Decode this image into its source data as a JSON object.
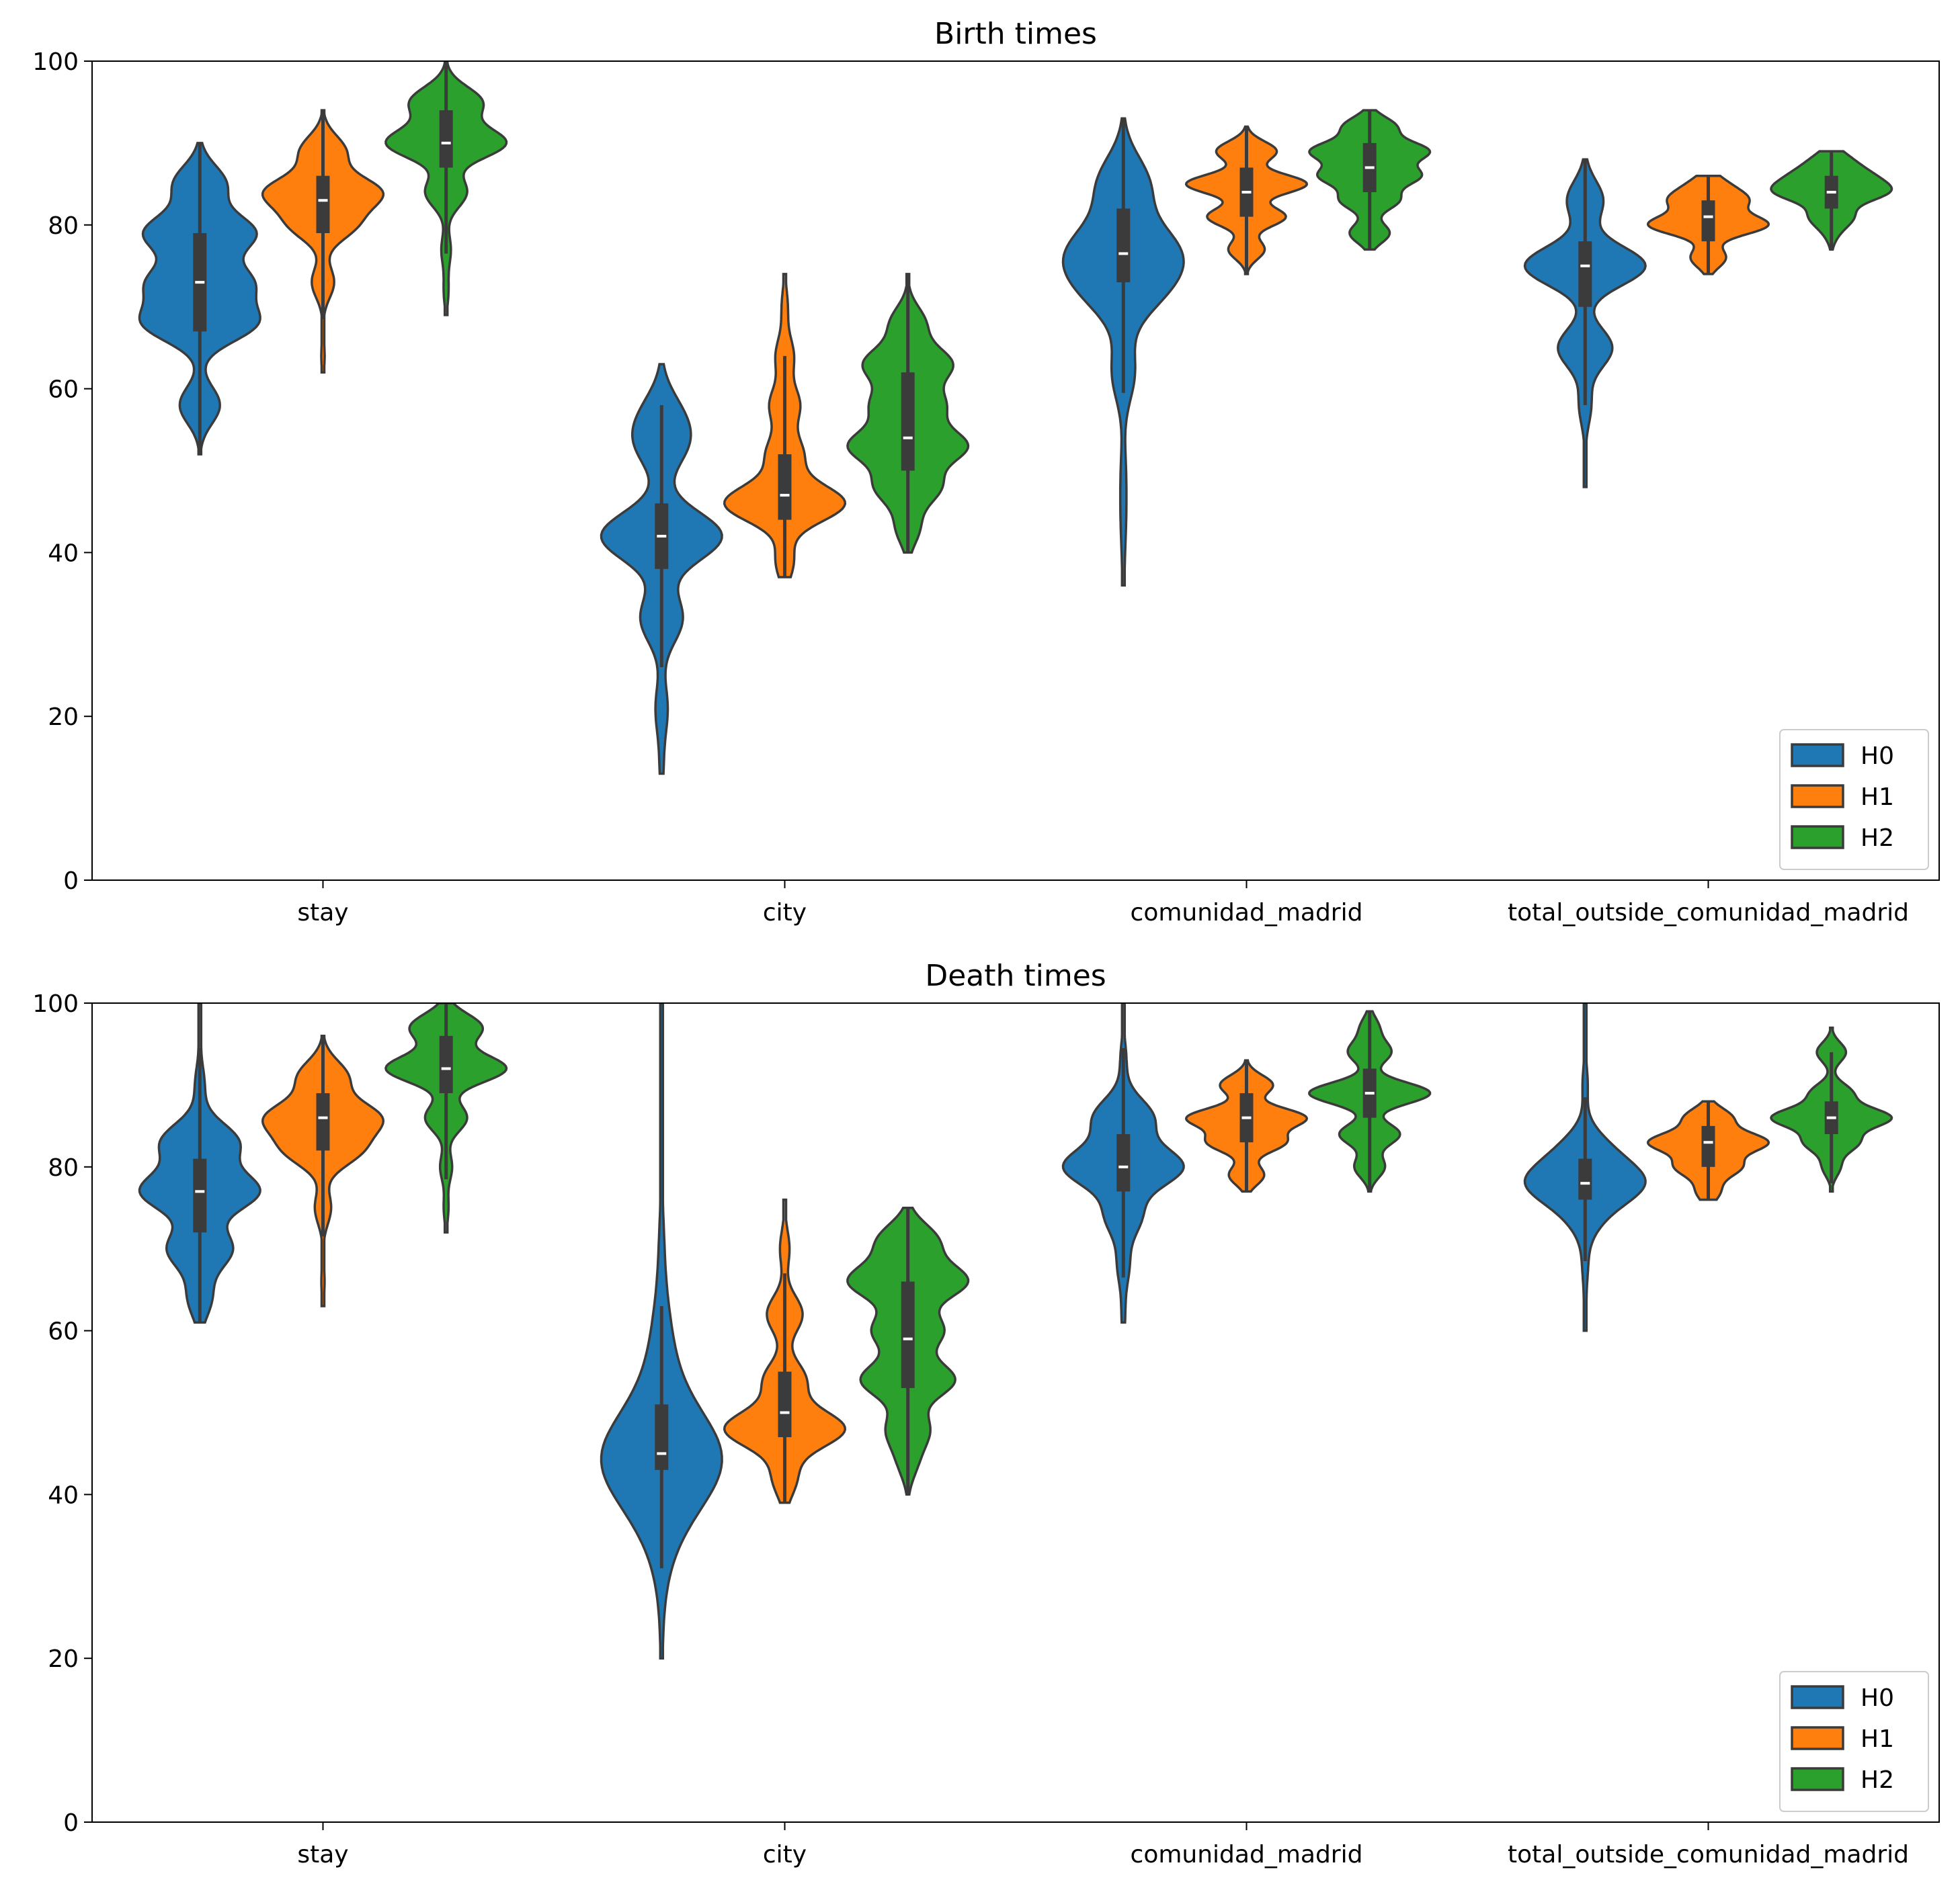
{
  "chart_data": [
    {
      "type": "violin",
      "title": "Birth times",
      "xlabel": "",
      "ylabel": "",
      "ylim": [
        0,
        100
      ],
      "yticks": [
        0,
        20,
        40,
        60,
        80,
        100
      ],
      "categories": [
        "stay",
        "city",
        "comunidad_madrid",
        "total_outside_comunidad_madrid"
      ],
      "legend": {
        "placement": "lower-right",
        "entries": [
          "H0",
          "H1",
          "H2"
        ]
      },
      "series": [
        {
          "name": "H0",
          "color": "#1f77b4",
          "stats": [
            {
              "min": 52,
              "q1": 67,
              "median": 73,
              "q3": 79,
              "max": 90,
              "modes": [
                [
                  58,
                  0.35
                ],
                [
                  68,
                  0.95
                ],
                [
                  73,
                  0.85
                ],
                [
                  79,
                  0.95
                ],
                [
                  85,
                  0.45
                ]
              ]
            },
            {
              "min": 13,
              "q1": 38,
              "median": 42,
              "q3": 46,
              "max": 63,
              "modes": [
                [
                  14,
                  0.03
                ],
                [
                  21,
                  0.1
                ],
                [
                  32,
                  0.35
                ],
                [
                  42,
                  1.0
                ],
                [
                  53,
                  0.35
                ],
                [
                  57,
                  0.25
                ]
              ]
            },
            {
              "min": 36,
              "q1": 73,
              "median": 76.5,
              "q3": 82,
              "max": 93,
              "modes": [
                [
                  37,
                  0.02
                ],
                [
                  44,
                  0.05
                ],
                [
                  50,
                  0.05
                ],
                [
                  62,
                  0.25
                ],
                [
                  72,
                  0.7
                ],
                [
                  77,
                  1.0
                ],
                [
                  85,
                  0.55
                ]
              ]
            },
            {
              "min": 48,
              "q1": 70,
              "median": 75,
              "q3": 78,
              "max": 88,
              "modes": [
                [
                  49,
                  0.02
                ],
                [
                  58,
                  0.1
                ],
                [
                  65,
                  0.45
                ],
                [
                  75,
                  1.0
                ],
                [
                  83,
                  0.3
                ]
              ]
            }
          ]
        },
        {
          "name": "H1",
          "color": "#ff7f0e",
          "stats": [
            {
              "min": 62,
              "q1": 79,
              "median": 83,
              "q3": 86,
              "max": 94,
              "modes": [
                [
                  64,
                  0.03
                ],
                [
                  73,
                  0.2
                ],
                [
                  80,
                  0.55
                ],
                [
                  84,
                  1.0
                ],
                [
                  89,
                  0.4
                ]
              ]
            },
            {
              "min": 37,
              "q1": 44,
              "median": 47,
              "q3": 52,
              "max": 74,
              "modes": [
                [
                  39,
                  0.15
                ],
                [
                  46,
                  1.0
                ],
                [
                  52,
                  0.3
                ],
                [
                  58,
                  0.25
                ],
                [
                  64,
                  0.15
                ],
                [
                  70,
                  0.05
                ]
              ]
            },
            {
              "min": 74,
              "q1": 81,
              "median": 84,
              "q3": 87,
              "max": 92,
              "modes": [
                [
                  77,
                  0.3
                ],
                [
                  81,
                  0.65
                ],
                [
                  85,
                  1.0
                ],
                [
                  89,
                  0.5
                ]
              ]
            },
            {
              "min": 74,
              "q1": 78,
              "median": 81,
              "q3": 83,
              "max": 86,
              "modes": [
                [
                  76,
                  0.3
                ],
                [
                  80,
                  1.0
                ],
                [
                  83,
                  0.6
                ],
                [
                  85,
                  0.25
                ]
              ]
            }
          ]
        },
        {
          "name": "H2",
          "color": "#2ca02c",
          "stats": [
            {
              "min": 69,
              "q1": 87,
              "median": 90,
              "q3": 94,
              "max": 100,
              "modes": [
                [
                  72,
                  0.04
                ],
                [
                  77,
                  0.08
                ],
                [
                  84,
                  0.35
                ],
                [
                  90,
                  1.0
                ],
                [
                  95,
                  0.6
                ]
              ]
            },
            {
              "min": 40,
              "q1": 50,
              "median": 54,
              "q3": 62,
              "max": 74,
              "modes": [
                [
                  43,
                  0.2
                ],
                [
                  48,
                  0.55
                ],
                [
                  53,
                  1.0
                ],
                [
                  58,
                  0.6
                ],
                [
                  63,
                  0.75
                ],
                [
                  68,
                  0.3
                ]
              ]
            },
            {
              "min": 77,
              "q1": 84,
              "median": 87,
              "q3": 90,
              "max": 94,
              "modes": [
                [
                  79,
                  0.35
                ],
                [
                  83,
                  0.5
                ],
                [
                  86,
                  0.85
                ],
                [
                  89,
                  1.0
                ],
                [
                  92,
                  0.45
                ]
              ]
            },
            {
              "min": 77,
              "q1": 82,
              "median": 84,
              "q3": 86,
              "max": 89,
              "modes": [
                [
                  79,
                  0.1
                ],
                [
                  81,
                  0.4
                ],
                [
                  84,
                  1.0
                ],
                [
                  86,
                  0.6
                ],
                [
                  88,
                  0.3
                ]
              ]
            }
          ]
        }
      ]
    },
    {
      "type": "violin",
      "title": "Death times",
      "xlabel": "",
      "ylabel": "",
      "ylim": [
        0,
        100
      ],
      "yticks": [
        0,
        20,
        40,
        60,
        80,
        100
      ],
      "categories": [
        "stay",
        "city",
        "comunidad_madrid",
        "total_outside_comunidad_madrid"
      ],
      "legend": {
        "placement": "lower-right",
        "entries": [
          "H0",
          "H1",
          "H2"
        ]
      },
      "series": [
        {
          "name": "H0",
          "color": "#1f77b4",
          "stats": [
            {
              "min": 61,
              "q1": 72,
              "median": 77,
              "q3": 81,
              "max": 100,
              "modes": [
                [
                  64,
                  0.2
                ],
                [
                  70,
                  0.55
                ],
                [
                  77,
                  1.0
                ],
                [
                  83,
                  0.65
                ],
                [
                  90,
                  0.08
                ],
                [
                  97,
                  0.02
                ]
              ]
            },
            {
              "min": 20,
              "q1": 43,
              "median": 45,
              "q3": 51,
              "max": 100,
              "modes": [
                [
                  22,
                  0.02
                ],
                [
                  32,
                  0.1
                ],
                [
                  39,
                  0.45
                ],
                [
                  45,
                  1.0
                ],
                [
                  52,
                  0.3
                ],
                [
                  60,
                  0.15
                ],
                [
                  70,
                  0.05
                ],
                [
                  85,
                  0.02
                ]
              ]
            },
            {
              "min": 61,
              "q1": 77,
              "median": 80,
              "q3": 84,
              "max": 100,
              "modes": [
                [
                  62,
                  0.03
                ],
                [
                  68,
                  0.1
                ],
                [
                  74,
                  0.3
                ],
                [
                  80,
                  1.0
                ],
                [
                  86,
                  0.5
                ],
                [
                  93,
                  0.05
                ]
              ]
            },
            {
              "min": 60,
              "q1": 76,
              "median": 78,
              "q3": 81,
              "max": 100,
              "modes": [
                [
                  62,
                  0.02
                ],
                [
                  68,
                  0.05
                ],
                [
                  74,
                  0.25
                ],
                [
                  78,
                  1.0
                ],
                [
                  82,
                  0.4
                ],
                [
                  90,
                  0.05
                ]
              ]
            }
          ]
        },
        {
          "name": "H1",
          "color": "#ff7f0e",
          "stats": [
            {
              "min": 63,
              "q1": 82,
              "median": 86,
              "q3": 89,
              "max": 96,
              "modes": [
                [
                  66,
                  0.03
                ],
                [
                  75,
                  0.15
                ],
                [
                  82,
                  0.65
                ],
                [
                  86,
                  1.0
                ],
                [
                  91,
                  0.45
                ]
              ]
            },
            {
              "min": 39,
              "q1": 47,
              "median": 50,
              "q3": 55,
              "max": 76,
              "modes": [
                [
                  42,
                  0.2
                ],
                [
                  48,
                  1.0
                ],
                [
                  54,
                  0.35
                ],
                [
                  62,
                  0.3
                ],
                [
                  70,
                  0.08
                ]
              ]
            },
            {
              "min": 77,
              "q1": 83,
              "median": 86,
              "q3": 89,
              "max": 93,
              "modes": [
                [
                  79,
                  0.3
                ],
                [
                  83,
                  0.65
                ],
                [
                  86,
                  1.0
                ],
                [
                  90,
                  0.45
                ]
              ]
            },
            {
              "min": 76,
              "q1": 80,
              "median": 83,
              "q3": 85,
              "max": 88,
              "modes": [
                [
                  77,
                  0.2
                ],
                [
                  80,
                  0.55
                ],
                [
                  83,
                  1.0
                ],
                [
                  86,
                  0.4
                ]
              ]
            }
          ]
        },
        {
          "name": "H2",
          "color": "#2ca02c",
          "stats": [
            {
              "min": 72,
              "q1": 89,
              "median": 92,
              "q3": 96,
              "max": 100,
              "modes": [
                [
                  75,
                  0.04
                ],
                [
                  80,
                  0.1
                ],
                [
                  86,
                  0.35
                ],
                [
                  92,
                  1.0
                ],
                [
                  97,
                  0.6
                ]
              ]
            },
            {
              "min": 40,
              "q1": 53,
              "median": 59,
              "q3": 66,
              "max": 75,
              "modes": [
                [
                  44,
                  0.15
                ],
                [
                  48,
                  0.35
                ],
                [
                  54,
                  0.8
                ],
                [
                  60,
                  0.6
                ],
                [
                  66,
                  1.0
                ],
                [
                  71,
                  0.5
                ]
              ]
            },
            {
              "min": 77,
              "q1": 86,
              "median": 89,
              "q3": 92,
              "max": 99,
              "modes": [
                [
                  80,
                  0.25
                ],
                [
                  84,
                  0.5
                ],
                [
                  89,
                  1.0
                ],
                [
                  94,
                  0.35
                ],
                [
                  97,
                  0.15
                ]
              ]
            },
            {
              "min": 77,
              "q1": 84,
              "median": 86,
              "q3": 88,
              "max": 97,
              "modes": [
                [
                  80,
                  0.15
                ],
                [
                  83,
                  0.45
                ],
                [
                  86,
                  1.0
                ],
                [
                  89,
                  0.35
                ],
                [
                  94,
                  0.25
                ]
              ]
            }
          ]
        }
      ]
    }
  ]
}
